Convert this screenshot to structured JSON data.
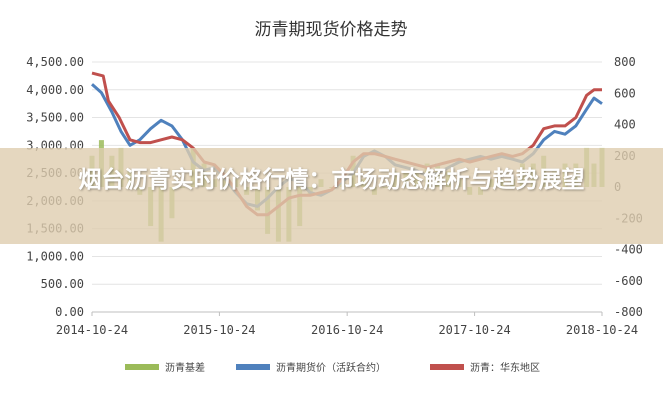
{
  "overlay_title": "烟台沥青实时价格行情：市场动态解析与趋势展望",
  "colors": {
    "basis": "#9bbb59",
    "futures": "#4f81bd",
    "spot": "#c0504d"
  },
  "chart_data": {
    "type": "line",
    "title": "沥青期现货价格走势",
    "x_ticks": [
      "2014-10-24",
      "2015-10-24",
      "2016-10-24",
      "2017-10-24",
      "2018-10-24"
    ],
    "y_left": {
      "ticks": [
        "4,500.00",
        "4,000.00",
        "3,500.00",
        "3,000.00",
        "2,500.00",
        "2,000.00",
        "1,500.00",
        "1,000.00",
        "500.00",
        "0.00"
      ],
      "range": [
        0,
        4500
      ]
    },
    "y_right": {
      "ticks": [
        "800",
        "600",
        "400",
        "200",
        "0",
        "-200",
        "-400",
        "-600",
        "-800"
      ],
      "range": [
        -800,
        800
      ]
    },
    "legend": [
      "沥青基差",
      "沥青期货价（活跃合约）",
      "沥青：华东地区"
    ],
    "series": [
      {
        "name": "沥青期货价（活跃合约）",
        "axis": "left",
        "type": "line",
        "points": [
          [
            "2014-10-24",
            4100
          ],
          [
            "2014-11-20",
            3950
          ],
          [
            "2014-12-20",
            3600
          ],
          [
            "2015-01-15",
            3250
          ],
          [
            "2015-02-10",
            3000
          ],
          [
            "2015-03-10",
            3100
          ],
          [
            "2015-04-10",
            3300
          ],
          [
            "2015-05-10",
            3450
          ],
          [
            "2015-06-10",
            3350
          ],
          [
            "2015-07-10",
            3100
          ],
          [
            "2015-08-10",
            2700
          ],
          [
            "2015-09-10",
            2550
          ],
          [
            "2015-10-10",
            2600
          ],
          [
            "2015-11-10",
            2400
          ],
          [
            "2015-12-10",
            2150
          ],
          [
            "2016-01-10",
            1950
          ],
          [
            "2016-02-10",
            1900
          ],
          [
            "2016-03-10",
            2050
          ],
          [
            "2016-04-10",
            2250
          ],
          [
            "2016-05-10",
            2400
          ],
          [
            "2016-06-10",
            2350
          ],
          [
            "2016-07-10",
            2150
          ],
          [
            "2016-08-10",
            2100
          ],
          [
            "2016-09-10",
            2200
          ],
          [
            "2016-10-10",
            2350
          ],
          [
            "2016-11-10",
            2500
          ],
          [
            "2016-12-10",
            2800
          ],
          [
            "2017-01-10",
            2900
          ],
          [
            "2017-02-10",
            2800
          ],
          [
            "2017-03-10",
            2650
          ],
          [
            "2017-04-10",
            2600
          ],
          [
            "2017-05-10",
            2550
          ],
          [
            "2017-06-10",
            2450
          ],
          [
            "2017-07-10",
            2500
          ],
          [
            "2017-08-10",
            2600
          ],
          [
            "2017-09-10",
            2700
          ],
          [
            "2017-10-10",
            2750
          ],
          [
            "2017-11-10",
            2800
          ],
          [
            "2017-12-10",
            2750
          ],
          [
            "2018-01-10",
            2800
          ],
          [
            "2018-02-10",
            2750
          ],
          [
            "2018-03-10",
            2700
          ],
          [
            "2018-04-10",
            2850
          ],
          [
            "2018-05-10",
            3100
          ],
          [
            "2018-06-10",
            3250
          ],
          [
            "2018-07-10",
            3200
          ],
          [
            "2018-08-10",
            3350
          ],
          [
            "2018-09-10",
            3650
          ],
          [
            "2018-10-01",
            3850
          ],
          [
            "2018-10-24",
            3750
          ]
        ]
      },
      {
        "name": "沥青：华东地区",
        "axis": "left",
        "type": "line",
        "points": [
          [
            "2014-10-24",
            4300
          ],
          [
            "2014-11-25",
            4250
          ],
          [
            "2014-12-10",
            3800
          ],
          [
            "2015-01-10",
            3500
          ],
          [
            "2015-02-10",
            3100
          ],
          [
            "2015-03-10",
            3050
          ],
          [
            "2015-04-10",
            3050
          ],
          [
            "2015-05-10",
            3100
          ],
          [
            "2015-06-10",
            3150
          ],
          [
            "2015-07-10",
            3100
          ],
          [
            "2015-08-10",
            2950
          ],
          [
            "2015-09-10",
            2700
          ],
          [
            "2015-10-10",
            2650
          ],
          [
            "2015-11-10",
            2450
          ],
          [
            "2015-12-10",
            2200
          ],
          [
            "2016-01-10",
            1900
          ],
          [
            "2016-02-10",
            1750
          ],
          [
            "2016-03-10",
            1750
          ],
          [
            "2016-04-10",
            1900
          ],
          [
            "2016-05-10",
            2050
          ],
          [
            "2016-06-10",
            2100
          ],
          [
            "2016-07-10",
            2100
          ],
          [
            "2016-08-10",
            2150
          ],
          [
            "2016-09-10",
            2200
          ],
          [
            "2016-10-10",
            2400
          ],
          [
            "2016-11-10",
            2700
          ],
          [
            "2016-12-10",
            2850
          ],
          [
            "2017-01-10",
            2850
          ],
          [
            "2017-02-10",
            2800
          ],
          [
            "2017-03-10",
            2750
          ],
          [
            "2017-04-10",
            2700
          ],
          [
            "2017-05-10",
            2650
          ],
          [
            "2017-06-10",
            2600
          ],
          [
            "2017-07-10",
            2650
          ],
          [
            "2017-08-10",
            2700
          ],
          [
            "2017-09-10",
            2750
          ],
          [
            "2017-10-10",
            2700
          ],
          [
            "2017-11-10",
            2750
          ],
          [
            "2017-12-10",
            2800
          ],
          [
            "2018-01-10",
            2850
          ],
          [
            "2018-02-10",
            2800
          ],
          [
            "2018-03-10",
            2850
          ],
          [
            "2018-04-10",
            3000
          ],
          [
            "2018-05-10",
            3300
          ],
          [
            "2018-06-10",
            3350
          ],
          [
            "2018-07-10",
            3350
          ],
          [
            "2018-08-10",
            3500
          ],
          [
            "2018-09-10",
            3900
          ],
          [
            "2018-10-01",
            4000
          ],
          [
            "2018-10-24",
            4000
          ]
        ]
      },
      {
        "name": "沥青基差",
        "axis": "right",
        "type": "bar",
        "points": [
          [
            "2014-10-24",
            200
          ],
          [
            "2014-11-20",
            300
          ],
          [
            "2014-12-20",
            200
          ],
          [
            "2015-01-15",
            250
          ],
          [
            "2015-02-10",
            100
          ],
          [
            "2015-03-10",
            -50
          ],
          [
            "2015-04-10",
            -250
          ],
          [
            "2015-05-10",
            -350
          ],
          [
            "2015-06-10",
            -200
          ],
          [
            "2015-07-10",
            0
          ],
          [
            "2015-08-10",
            250
          ],
          [
            "2015-09-10",
            150
          ],
          [
            "2015-10-10",
            50
          ],
          [
            "2015-11-10",
            50
          ],
          [
            "2015-12-10",
            50
          ],
          [
            "2016-01-10",
            -50
          ],
          [
            "2016-02-10",
            -150
          ],
          [
            "2016-03-10",
            -300
          ],
          [
            "2016-04-10",
            -350
          ],
          [
            "2016-05-10",
            -350
          ],
          [
            "2016-06-10",
            -250
          ],
          [
            "2016-07-10",
            -50
          ],
          [
            "2016-08-10",
            50
          ],
          [
            "2016-09-10",
            0
          ],
          [
            "2016-10-10",
            50
          ],
          [
            "2016-11-10",
            200
          ],
          [
            "2016-12-10",
            50
          ],
          [
            "2017-01-10",
            -50
          ],
          [
            "2017-02-10",
            0
          ],
          [
            "2017-03-10",
            100
          ],
          [
            "2017-04-10",
            100
          ],
          [
            "2017-05-10",
            100
          ],
          [
            "2017-06-10",
            150
          ],
          [
            "2017-07-10",
            150
          ],
          [
            "2017-08-10",
            100
          ],
          [
            "2017-09-10",
            50
          ],
          [
            "2017-10-10",
            -50
          ],
          [
            "2017-11-10",
            -50
          ],
          [
            "2017-12-10",
            50
          ],
          [
            "2018-01-10",
            50
          ],
          [
            "2018-02-10",
            50
          ],
          [
            "2018-03-10",
            150
          ],
          [
            "2018-04-10",
            150
          ],
          [
            "2018-05-10",
            200
          ],
          [
            "2018-06-10",
            100
          ],
          [
            "2018-07-10",
            150
          ],
          [
            "2018-08-10",
            150
          ],
          [
            "2018-09-10",
            250
          ],
          [
            "2018-10-01",
            150
          ],
          [
            "2018-10-24",
            250
          ]
        ]
      }
    ]
  }
}
